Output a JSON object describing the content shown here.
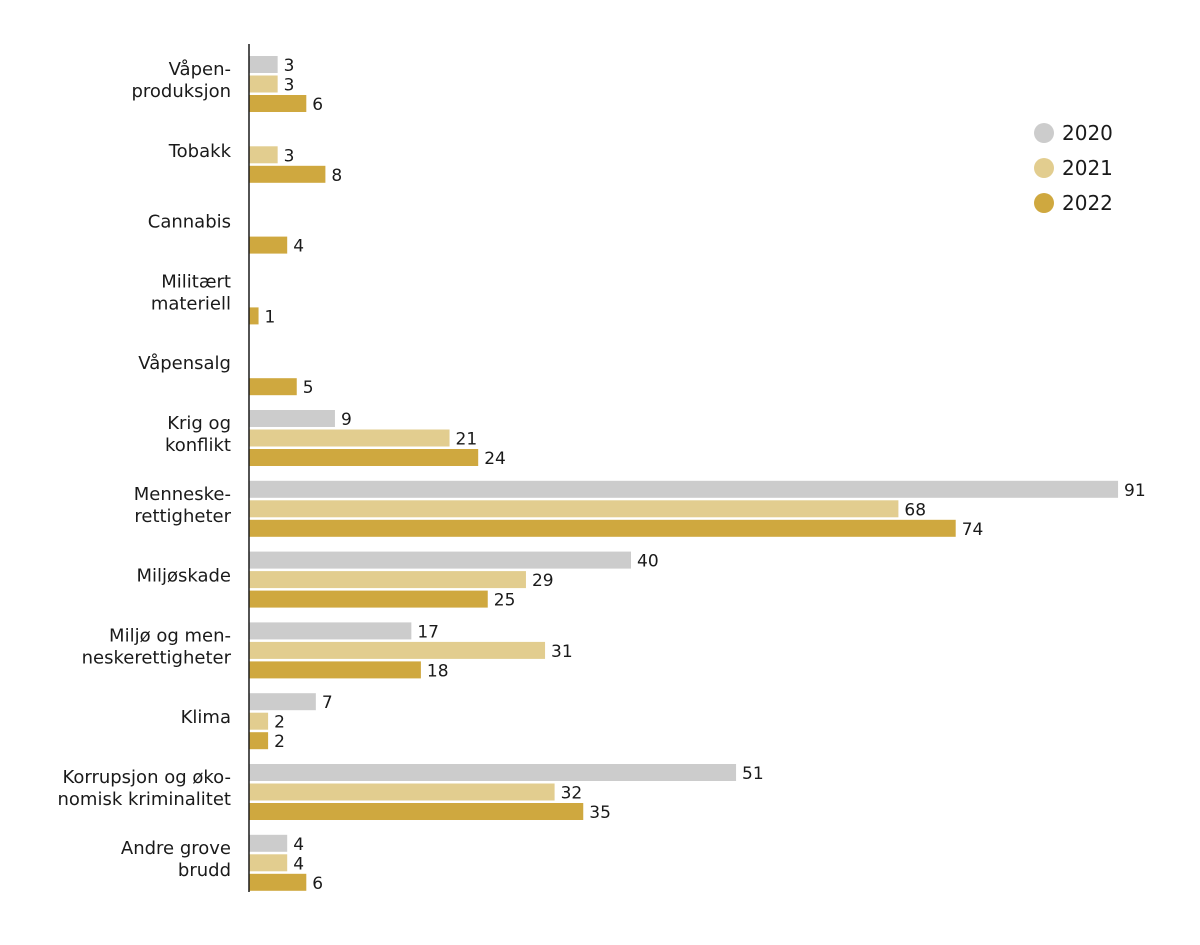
{
  "chart_data": {
    "type": "bar",
    "orientation": "horizontal",
    "title": "",
    "xlabel": "",
    "ylabel": "",
    "grid": false,
    "legend_position": "top-right",
    "categories": [
      [
        "Våpen-",
        "produksjon"
      ],
      [
        "Tobakk"
      ],
      [
        "Cannabis"
      ],
      [
        "Militært",
        "materiell"
      ],
      [
        "Våpensalg"
      ],
      [
        "Krig og",
        "konflikt"
      ],
      [
        "Menneske-",
        "rettigheter"
      ],
      [
        "Miljøskade"
      ],
      [
        "Miljø og men-",
        "neskerettigheter"
      ],
      [
        "Klima"
      ],
      [
        "Korrupsjon og øko-",
        "nomisk kriminalitet"
      ],
      [
        "Andre grove",
        "brudd"
      ]
    ],
    "series": [
      {
        "name": "2020",
        "color": "#cccccc",
        "values": [
          3,
          null,
          null,
          null,
          null,
          9,
          91,
          40,
          17,
          7,
          51,
          4
        ]
      },
      {
        "name": "2021",
        "color": "#e2cd8f",
        "values": [
          3,
          3,
          null,
          null,
          null,
          21,
          68,
          29,
          31,
          2,
          32,
          4
        ]
      },
      {
        "name": "2022",
        "color": "#cfa83f",
        "values": [
          6,
          8,
          4,
          1,
          5,
          24,
          74,
          25,
          18,
          2,
          35,
          6
        ]
      }
    ]
  }
}
